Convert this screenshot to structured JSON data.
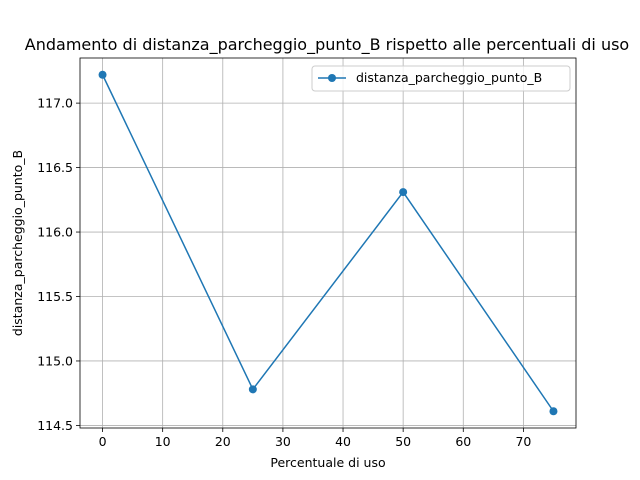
{
  "chart_data": {
    "type": "line",
    "title": "Andamento di distanza_parcheggio_punto_B rispetto alle percentuali di uso",
    "xlabel": "Percentuale di uso",
    "ylabel": "distanza_parcheggio_punto_B",
    "x": [
      0,
      25,
      50,
      75
    ],
    "series": [
      {
        "name": "distanza_parcheggio_punto_B",
        "values": [
          117.22,
          114.78,
          116.31,
          114.61
        ],
        "color": "#1f77b4",
        "marker": "circle"
      }
    ],
    "xlim": [
      -3.75,
      78.75
    ],
    "ylim": [
      114.48,
      117.35
    ],
    "xticks": [
      0,
      10,
      20,
      30,
      40,
      50,
      60,
      70
    ],
    "yticks": [
      114.5,
      115.0,
      115.5,
      116.0,
      116.5,
      117.0
    ],
    "ytick_labels": [
      "114.5",
      "115.0",
      "115.5",
      "116.0",
      "116.5",
      "117.0"
    ],
    "grid": true,
    "legend_position": "top-right"
  }
}
